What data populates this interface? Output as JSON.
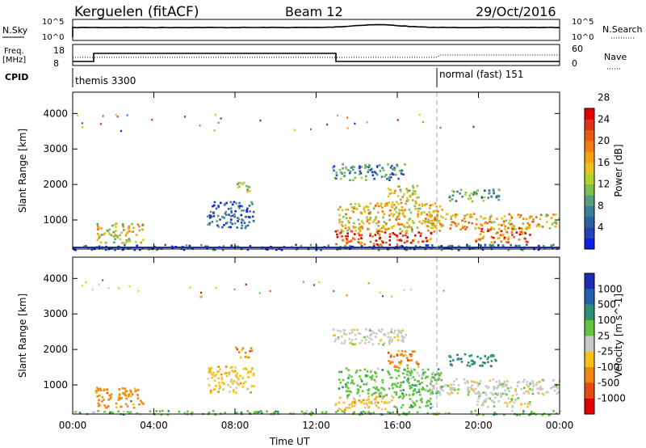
{
  "header": {
    "station": "Kerguelen (fitACF)",
    "beam": "Beam 12",
    "date": "29/Oct/2016"
  },
  "top_panels": {
    "nsky_label": "N.Sky",
    "nsky_ticks": [
      "10^5",
      "10^0"
    ],
    "nsearch_label": "N.Search",
    "freq_label_line1": "Freq.",
    "freq_label_line2": "[MHz]",
    "freq_ticks": [
      "18",
      "8"
    ],
    "nave_label": "Nave",
    "nave_ticks": [
      "60",
      "0"
    ],
    "cpid_label": "CPID",
    "cpid_segments": [
      "themis 3300",
      "normal (fast) 151"
    ]
  },
  "chart_data": [
    {
      "type": "heatmap",
      "name": "power",
      "ylabel": "Slant Range [km]",
      "xlabel": "",
      "xticks": [
        "00:00",
        "04:00",
        "08:00",
        "12:00",
        "16:00",
        "20:00",
        "00:00"
      ],
      "yticks": [
        "1000",
        "2000",
        "3000",
        "4000"
      ],
      "xlim_hours": [
        0,
        24
      ],
      "ylim_km": [
        180,
        4600
      ],
      "colorbar": {
        "label": "Power [dB]",
        "ticks": [
          "4",
          "8",
          "12",
          "16",
          "20",
          "24",
          "28"
        ],
        "colors": [
          "#0a1fe8",
          "#2342b4",
          "#2e5fa3",
          "#3d7f9b",
          "#56a07c",
          "#7fbf4f",
          "#b4d12e",
          "#e6c21a",
          "#f5a00f",
          "#f27d10",
          "#e95a14",
          "#df3318",
          "#e00000"
        ]
      },
      "regions": [
        {
          "t0": 0.0,
          "t1": 24.0,
          "r0": 180,
          "r1": 330,
          "level": 0.15
        },
        {
          "t0": 1.1,
          "t1": 3.5,
          "r0": 380,
          "r1": 950,
          "level": 0.55
        },
        {
          "t0": 6.6,
          "t1": 8.9,
          "r0": 800,
          "r1": 1550,
          "level": 0.15
        },
        {
          "t0": 8.0,
          "t1": 8.8,
          "r0": 1800,
          "r1": 2100,
          "level": 0.4
        },
        {
          "t0": 12.9,
          "t1": 15.8,
          "r0": 320,
          "r1": 720,
          "level": 0.92
        },
        {
          "t0": 15.8,
          "t1": 17.7,
          "r0": 380,
          "r1": 680,
          "level": 0.9
        },
        {
          "t0": 12.7,
          "t1": 16.4,
          "r0": 2150,
          "r1": 2600,
          "level": 0.25
        },
        {
          "t0": 13.0,
          "t1": 18.2,
          "r0": 700,
          "r1": 1500,
          "level": 0.6
        },
        {
          "t0": 15.5,
          "t1": 17.0,
          "r0": 1500,
          "r1": 2000,
          "level": 0.55
        },
        {
          "t0": 17.5,
          "t1": 24.0,
          "r0": 750,
          "r1": 1200,
          "level": 0.65
        },
        {
          "t0": 19.8,
          "t1": 22.5,
          "r0": 400,
          "r1": 800,
          "level": 0.8
        },
        {
          "t0": 18.5,
          "t1": 21.0,
          "r0": 1550,
          "r1": 1900,
          "level": 0.3
        }
      ]
    },
    {
      "type": "heatmap",
      "name": "velocity",
      "ylabel": "Slant Range [km]",
      "xlabel": "Time UT",
      "xticks": [
        "00:00",
        "04:00",
        "08:00",
        "12:00",
        "16:00",
        "20:00",
        "00:00"
      ],
      "yticks": [
        "1000",
        "2000",
        "3000",
        "4000"
      ],
      "xlim_hours": [
        0,
        24
      ],
      "ylim_km": [
        180,
        4600
      ],
      "colorbar": {
        "label": "Velocity [m s^-1]",
        "ticks": [
          "1000",
          "500",
          "100",
          "25",
          "-25",
          "-100",
          "-500",
          "-1000"
        ],
        "colors": [
          "#1b2fb0",
          "#2561a8",
          "#2e8f74",
          "#62c43d",
          "#c8c8c8",
          "#f5c215",
          "#f0860e",
          "#e64a12",
          "#e00000"
        ]
      },
      "regions": [
        {
          "t0": 0.0,
          "t1": 24.0,
          "r0": 180,
          "r1": 300,
          "level": 3
        },
        {
          "t0": 1.1,
          "t1": 3.5,
          "r0": 380,
          "r1": 950,
          "level": 6
        },
        {
          "t0": 6.6,
          "t1": 8.9,
          "r0": 800,
          "r1": 1550,
          "level": 5
        },
        {
          "t0": 8.0,
          "t1": 8.8,
          "r0": 1800,
          "r1": 2100,
          "level": 6
        },
        {
          "t0": 12.9,
          "t1": 15.8,
          "r0": 320,
          "r1": 720,
          "level": 5
        },
        {
          "t0": 15.8,
          "t1": 17.7,
          "r0": 380,
          "r1": 680,
          "level": 3
        },
        {
          "t0": 12.7,
          "t1": 16.4,
          "r0": 2150,
          "r1": 2600,
          "level": 4
        },
        {
          "t0": 13.0,
          "t1": 18.2,
          "r0": 700,
          "r1": 1500,
          "level": 3
        },
        {
          "t0": 15.5,
          "t1": 17.0,
          "r0": 1500,
          "r1": 2000,
          "level": 6
        },
        {
          "t0": 17.5,
          "t1": 24.0,
          "r0": 750,
          "r1": 1200,
          "level": 4
        },
        {
          "t0": 19.8,
          "t1": 22.5,
          "r0": 400,
          "r1": 800,
          "level": 4
        },
        {
          "t0": 18.5,
          "t1": 21.0,
          "r0": 1550,
          "r1": 1900,
          "level": 2
        }
      ]
    }
  ]
}
